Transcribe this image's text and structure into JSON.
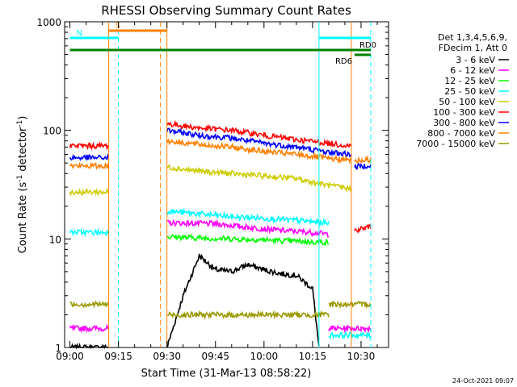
{
  "chart_data": {
    "type": "line",
    "title": "RHESSI Observing Summary Count Rates",
    "xlabel": "Start Time (31-Mar-13 08:58:22)",
    "ylabel": "Count Rate (s⁻¹ detector⁻¹)",
    "ylabel_parts": {
      "pre": "Count Rate (s",
      "sup1": "-1",
      "mid": " detector",
      "sup2": "-1",
      "post": ")"
    },
    "x_scale": "time",
    "x_range": [
      "08:58:22",
      "10:38:30"
    ],
    "x_ticks": [
      "09:00",
      "09:15",
      "09:30",
      "09:45",
      "10:00",
      "10:15",
      "10:30"
    ],
    "y_scale": "log",
    "y_range": [
      1,
      1000
    ],
    "y_ticks": [
      "1",
      "10",
      "100",
      "1000"
    ],
    "legend": {
      "header": [
        "Det 1,3,4,5,6,9,",
        "FDecim 1, Att 0"
      ],
      "placement": "right"
    },
    "series": [
      {
        "name": "3 - 6 keV",
        "color": "#000000",
        "segments": [
          {
            "x": [
              "09:00",
              "09:12"
            ],
            "y": [
              1,
              1
            ]
          },
          {
            "x": [
              "09:30",
              "09:35",
              "09:40",
              "09:45",
              "09:50",
              "09:55",
              "10:00",
              "10:05",
              "10:10",
              "10:15",
              "10:17"
            ],
            "y": [
              1,
              3.0,
              7.0,
              5.2,
              5.0,
              5.8,
              5.2,
              4.8,
              4.6,
              3.5,
              1
            ]
          }
        ]
      },
      {
        "name": "6 - 12 keV",
        "color": "#ff00ff",
        "segments": [
          {
            "x": [
              "09:00",
              "09:12"
            ],
            "y": [
              1.5,
              1.5
            ]
          },
          {
            "x": [
              "09:30",
              "09:35",
              "09:45",
              "09:55",
              "10:05",
              "10:15",
              "10:20"
            ],
            "y": [
              14.0,
              14.0,
              13.8,
              12.8,
              12.0,
              11.5,
              11.0
            ]
          },
          {
            "x": [
              "10:20",
              "10:30",
              "10:33"
            ],
            "y": [
              1.5,
              1.5,
              1.5
            ]
          }
        ]
      },
      {
        "name": "12 - 25 keV",
        "color": "#00ff00",
        "segments": [
          {
            "x": [
              "09:30",
              "09:40",
              "09:50",
              "10:00",
              "10:10",
              "10:20"
            ],
            "y": [
              10.5,
              10.2,
              10.0,
              9.8,
              9.5,
              9.3
            ]
          }
        ]
      },
      {
        "name": "25 - 50 keV",
        "color": "#00ffff",
        "segments": [
          {
            "x": [
              "09:00",
              "09:12"
            ],
            "y": [
              11.5,
              11.5
            ]
          },
          {
            "x": [
              "09:30",
              "09:40",
              "09:50",
              "10:00",
              "10:10",
              "10:20"
            ],
            "y": [
              18.0,
              17.0,
              16.0,
              15.5,
              14.8,
              14.0
            ]
          },
          {
            "x": [
              "10:20",
              "10:30",
              "10:33"
            ],
            "y": [
              1.3,
              1.3,
              1.3
            ]
          }
        ]
      },
      {
        "name": "50 - 100 keV",
        "color": "#cccc00",
        "segments": [
          {
            "x": [
              "09:00",
              "09:12"
            ],
            "y": [
              27,
              27
            ]
          },
          {
            "x": [
              "09:30",
              "09:40",
              "09:50",
              "10:00",
              "10:10",
              "10:20",
              "10:27"
            ],
            "y": [
              46,
              42,
              40,
              38,
              36,
              31,
              29
            ]
          }
        ]
      },
      {
        "name": "100 - 300 keV",
        "color": "#ff0000",
        "segments": [
          {
            "x": [
              "09:00",
              "09:12"
            ],
            "y": [
              72,
              72
            ]
          },
          {
            "x": [
              "09:30",
              "09:40",
              "09:50",
              "10:00",
              "10:10",
              "10:20",
              "10:27"
            ],
            "y": [
              115,
              105,
              100,
              90,
              82,
              76,
              72
            ]
          },
          {
            "x": [
              "10:28",
              "10:33"
            ],
            "y": [
              12,
              13
            ]
          }
        ]
      },
      {
        "name": "300 - 800 keV",
        "color": "#0000ff",
        "segments": [
          {
            "x": [
              "09:00",
              "09:12"
            ],
            "y": [
              56,
              56
            ]
          },
          {
            "x": [
              "09:30",
              "09:40",
              "09:50",
              "10:00",
              "10:10",
              "10:20",
              "10:27"
            ],
            "y": [
              100,
              90,
              85,
              76,
              70,
              63,
              60
            ]
          },
          {
            "x": [
              "10:28",
              "10:33"
            ],
            "y": [
              46,
              48
            ]
          }
        ]
      },
      {
        "name": "800 - 7000 keV",
        "color": "#ff8000",
        "segments": [
          {
            "x": [
              "09:00",
              "09:12"
            ],
            "y": [
              47,
              47
            ]
          },
          {
            "x": [
              "09:30",
              "09:40",
              "09:50",
              "10:00",
              "10:10",
              "10:20",
              "10:27"
            ],
            "y": [
              80,
              74,
              70,
              64,
              60,
              55,
              53
            ]
          },
          {
            "x": [
              "10:28",
              "10:33"
            ],
            "y": [
              52,
              54
            ]
          }
        ]
      },
      {
        "name": "7000 - 15000 keV",
        "color": "#999900",
        "segments": [
          {
            "x": [
              "09:00",
              "09:12"
            ],
            "y": [
              2.5,
              2.5
            ]
          },
          {
            "x": [
              "09:30",
              "09:50",
              "10:10",
              "10:20"
            ],
            "y": [
              2.0,
              2.0,
              2.0,
              2.0
            ]
          },
          {
            "x": [
              "10:20",
              "10:30",
              "10:33"
            ],
            "y": [
              2.5,
              2.5,
              2.5
            ]
          }
        ]
      }
    ],
    "flag_bars": [
      {
        "label": "S",
        "color": "#ff8000",
        "x": [
          "09:12",
          "09:30"
        ],
        "level": 0.95
      },
      {
        "label": "N",
        "color": "#00ffff",
        "x": [
          "09:00",
          "09:15"
        ],
        "level": 0.8
      },
      {
        "label": "",
        "color": "#00ffff",
        "x": [
          "10:17",
          "10:33"
        ],
        "level": 0.8
      },
      {
        "label": "RD0",
        "color": "#008000",
        "x": [
          "09:00",
          "10:33"
        ],
        "level": 0.55
      },
      {
        "label": "RD6",
        "color": "#008000",
        "x": [
          "10:28",
          "10:33"
        ],
        "level": 0.45
      }
    ],
    "vertical_markers": [
      {
        "x": "09:12",
        "color": "#ff8000",
        "style": "solid"
      },
      {
        "x": "09:15",
        "color": "#00ffff",
        "style": "dashed"
      },
      {
        "x": "09:28",
        "color": "#ff8000",
        "style": "dashed"
      },
      {
        "x": "09:30",
        "color": "#ff8000",
        "style": "solid"
      },
      {
        "x": "10:17",
        "color": "#00ffff",
        "style": "solid"
      },
      {
        "x": "10:27",
        "color": "#ff8000",
        "style": "solid"
      },
      {
        "x": "10:33",
        "color": "#00ffff",
        "style": "dashed"
      }
    ],
    "timestamp": "24-Oct-2021 09:07"
  }
}
